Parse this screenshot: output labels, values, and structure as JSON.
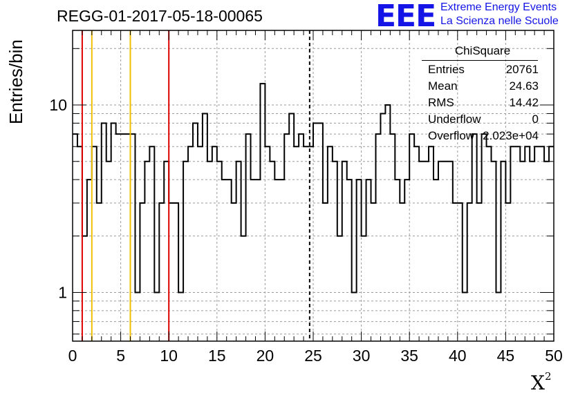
{
  "title": "REGG-01-2017-05-18-00065",
  "logo": {
    "mark": "EEE",
    "line1": "Extreme Energy Events",
    "line2": "La Scienza nelle Scuole",
    "color": "#1414e6"
  },
  "stats_box": {
    "title": "ChiSquare",
    "rows": [
      {
        "key": "Entries",
        "value": "20761"
      },
      {
        "key": "Mean",
        "value": "24.63"
      },
      {
        "key": "RMS",
        "value": "14.42"
      },
      {
        "key": "Underflow",
        "value": "0"
      },
      {
        "key": "Overflow",
        "value": "2.023e+04"
      }
    ]
  },
  "chart_data": {
    "type": "histogram",
    "title": "REGG-01-2017-05-18-00065",
    "xlabel": "X",
    "xlabel_superscript": "2",
    "ylabel": "Entries/bin",
    "xlim": [
      0,
      50
    ],
    "ylim": [
      0.55,
      25
    ],
    "yscale": "log",
    "bin_width": 0.5,
    "x_ticks": [
      0,
      5,
      10,
      15,
      20,
      25,
      30,
      35,
      40,
      45,
      50
    ],
    "y_ticks": [
      {
        "value": 1,
        "label": "1"
      },
      {
        "value": 10,
        "label": "10"
      }
    ],
    "grid": true,
    "counts": [
      7,
      6,
      2,
      4,
      6,
      3,
      8,
      5,
      8,
      7,
      7,
      7,
      7,
      1,
      3,
      5,
      6,
      1,
      3,
      5,
      3,
      3,
      1,
      5,
      6,
      8,
      6,
      9,
      5,
      6,
      5,
      4,
      4,
      3,
      5,
      2,
      7,
      4,
      4,
      13,
      6,
      5,
      4,
      4,
      7,
      9,
      6,
      7,
      6,
      6,
      8,
      8,
      3,
      6,
      5,
      2,
      5,
      4,
      1,
      4,
      2,
      4,
      3,
      7,
      9,
      10,
      7,
      4,
      3,
      4,
      7,
      6,
      5,
      5,
      6,
      4,
      5,
      5,
      5,
      3,
      3,
      1,
      3,
      7,
      3,
      7,
      6,
      5,
      1,
      5,
      3,
      6,
      6,
      5,
      6,
      5,
      6,
      6,
      5,
      6
    ],
    "vertical_lines": [
      {
        "x": 1,
        "color": "#e00000",
        "style": "solid"
      },
      {
        "x": 2,
        "color": "#f0c000",
        "style": "solid"
      },
      {
        "x": 6,
        "color": "#f0c000",
        "style": "solid"
      },
      {
        "x": 10,
        "color": "#e00000",
        "style": "solid"
      },
      {
        "x": 24.63,
        "color": "#000000",
        "style": "dashed"
      }
    ]
  }
}
